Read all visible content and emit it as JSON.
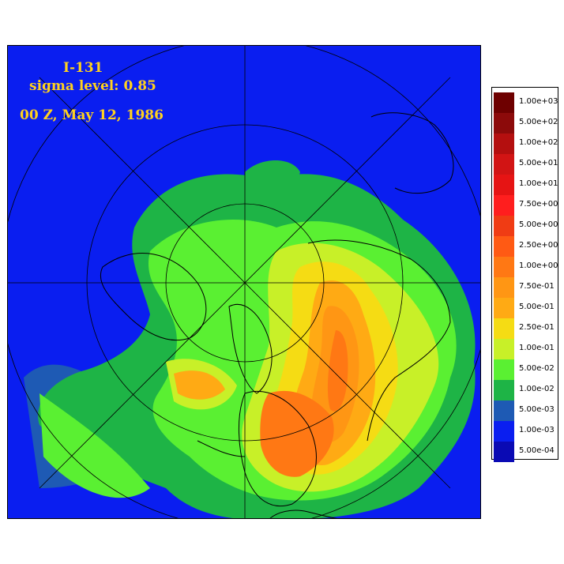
{
  "map": {
    "species": "I-131",
    "level": "sigma level: 0.85",
    "time": "00 Z, May 12, 1986",
    "projection": "north-polar-stereographic"
  },
  "legend": {
    "items": [
      {
        "label": "1.00e+03",
        "color": "#6e0000"
      },
      {
        "label": "5.00e+02",
        "color": "#8c0a0a"
      },
      {
        "label": "1.00e+02",
        "color": "#b40f0f"
      },
      {
        "label": "5.00e+01",
        "color": "#d21414"
      },
      {
        "label": "1.00e+01",
        "color": "#e61414"
      },
      {
        "label": "7.50e+00",
        "color": "#ff1e1e"
      },
      {
        "label": "5.00e+00",
        "color": "#f03c14"
      },
      {
        "label": "2.50e+00",
        "color": "#ff5a14"
      },
      {
        "label": "1.00e+00",
        "color": "#ff7814"
      },
      {
        "label": "7.50e-01",
        "color": "#ff9614"
      },
      {
        "label": "5.00e-01",
        "color": "#ffaa14"
      },
      {
        "label": "2.50e-01",
        "color": "#f5dc14"
      },
      {
        "label": "1.00e-01",
        "color": "#c8f028"
      },
      {
        "label": "5.00e-02",
        "color": "#5af032"
      },
      {
        "label": "1.00e-02",
        "color": "#1eb446"
      },
      {
        "label": "5.00e-03",
        "color": "#1e5ab4"
      },
      {
        "label": "1.00e-03",
        "color": "#0a1ef0"
      },
      {
        "label": "5.00e-04",
        "color": "#0a0ab4"
      }
    ]
  }
}
